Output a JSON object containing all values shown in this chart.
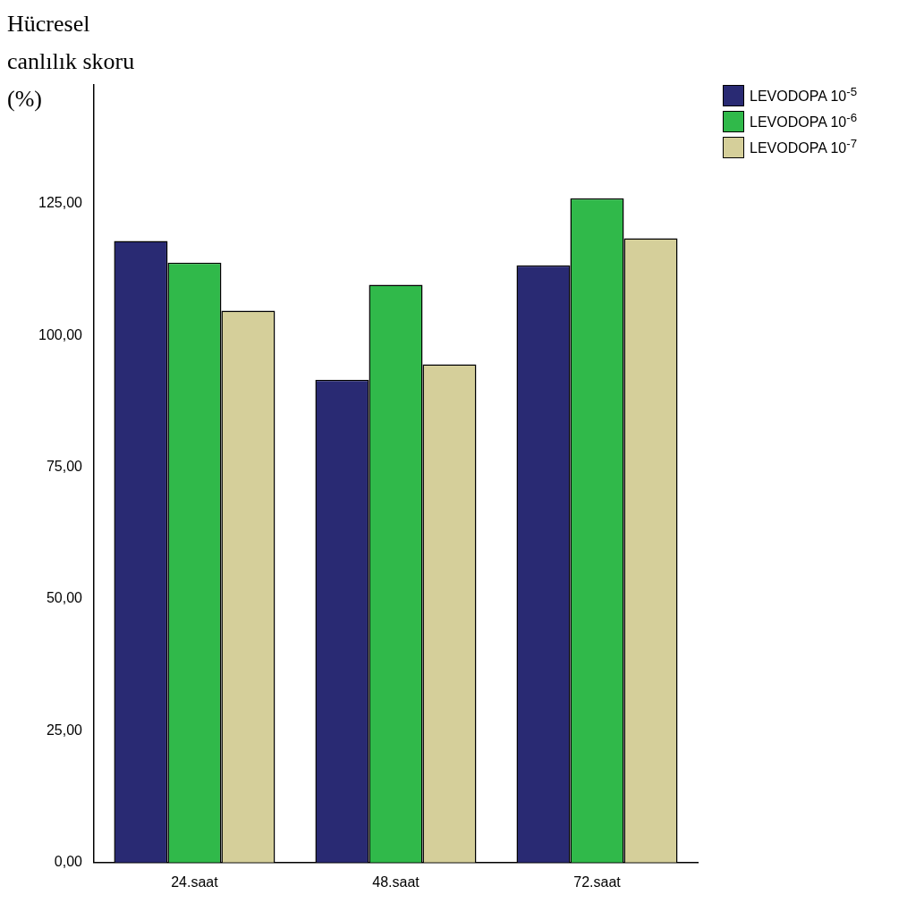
{
  "chart_data": {
    "type": "bar",
    "ylabel": "Hücresel canlılık skoru (%)",
    "categories": [
      "24.saat",
      "48.saat",
      "72.saat"
    ],
    "series": [
      {
        "name": "LEVODOPA  10$^{-5}$",
        "color": "#292a73",
        "values": [
          117.9,
          91.6,
          113.3
        ]
      },
      {
        "name": "LEVODOPA  10$^{-6}$",
        "color": "#30b94a",
        "values": [
          113.8,
          109.6,
          126.0
        ]
      },
      {
        "name": "LEVODOPA  10$^{-7}$",
        "color": "#d5cf9a",
        "values": [
          104.7,
          94.5,
          118.4
        ]
      }
    ],
    "ylim": [
      0,
      147.5
    ],
    "yticks": [
      {
        "value": 0,
        "label": "0,00"
      },
      {
        "value": 25,
        "label": "25,00"
      },
      {
        "value": 50,
        "label": "50,00"
      },
      {
        "value": 75,
        "label": "75,00"
      },
      {
        "value": 100,
        "label": "100,00"
      },
      {
        "value": 125,
        "label": "125,00"
      }
    ],
    "legend": "top right"
  }
}
